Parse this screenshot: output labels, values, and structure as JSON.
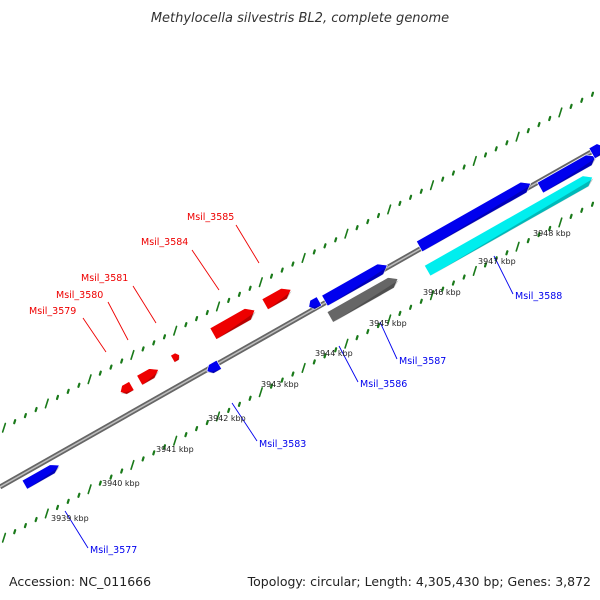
{
  "map": {
    "title": "Methylocella silvestris BL2, complete genome",
    "accession": "Accession: NC_011666",
    "summary": "Topology: circular; Length: 4,305,430 bp; Genes: 3,872"
  },
  "colors": {
    "forward": "#0000ee",
    "reverse": "#ee0000",
    "rrna": "#00eeee",
    "other": "#666666",
    "backbone": "#888888",
    "ticks": "#1a7a1a"
  },
  "ticks": [
    {
      "label": "3939 kbp"
    },
    {
      "label": "3940 kbp"
    },
    {
      "label": "3941 kbp"
    },
    {
      "label": "3942 kbp"
    },
    {
      "label": "3943 kbp"
    },
    {
      "label": "3944 kbp"
    },
    {
      "label": "3945 kbp"
    },
    {
      "label": "3946 kbp"
    },
    {
      "label": "3947 kbp"
    },
    {
      "label": "3948 kbp"
    }
  ],
  "genes": [
    {
      "label": "Msil_3577",
      "strand": "forward"
    },
    {
      "label": "Msil_3579",
      "strand": "reverse"
    },
    {
      "label": "Msil_3580",
      "strand": "reverse"
    },
    {
      "label": "Msil_3581",
      "strand": "reverse"
    },
    {
      "label": "Msil_3583",
      "strand": "forward"
    },
    {
      "label": "Msil_3584",
      "strand": "reverse"
    },
    {
      "label": "Msil_3585",
      "strand": "reverse"
    },
    {
      "label": "Msil_3586",
      "strand": "forward"
    },
    {
      "label": "Msil_3587",
      "strand": "forward"
    },
    {
      "label": "Msil_3588",
      "strand": "forward"
    }
  ]
}
